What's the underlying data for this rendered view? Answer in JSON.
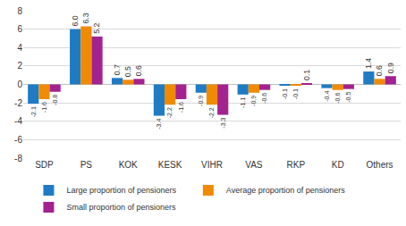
{
  "chart_data": {
    "type": "bar",
    "categories": [
      "SDP",
      "PS",
      "KOK",
      "KESK",
      "VIHR",
      "VAS",
      "RKP",
      "KD",
      "Others"
    ],
    "series": [
      {
        "name": "Large proportion of pensioners",
        "color": "#1f7bc3",
        "values": [
          -2.1,
          6.0,
          0.7,
          -3.4,
          -0.9,
          -1.1,
          -0.1,
          -0.4,
          1.4
        ],
        "value_labels": [
          "-2.1",
          "6.0",
          "0.7",
          "-3.4",
          "-0.9",
          "-1.1",
          "-0.1",
          "-0.4",
          "1.4"
        ]
      },
      {
        "name": "Average proportion of pensioners",
        "color": "#f08a00",
        "values": [
          -1.6,
          6.3,
          0.5,
          -2.2,
          -2.2,
          -0.9,
          -0.1,
          -0.6,
          0.6
        ],
        "value_labels": [
          "-1.6",
          "6.3",
          "0.5",
          "-2.2",
          "-2.2",
          "-0.9",
          "-0.1",
          "-0.6",
          "0.6"
        ]
      },
      {
        "name": "Small proportion of pensioners",
        "color": "#a3228f",
        "values": [
          -0.8,
          5.2,
          0.6,
          -1.6,
          -3.3,
          -0.6,
          0.1,
          -0.5,
          0.9
        ],
        "value_labels": [
          "-0.8",
          "5.2",
          "0.6",
          "-1.6",
          "-3.3",
          "-0.6",
          "0.1",
          "-0.5",
          "0.9"
        ]
      }
    ],
    "ylim": [
      -8,
      8
    ],
    "yticks": [
      -8,
      -6,
      -4,
      -2,
      0,
      2,
      4,
      6,
      8
    ],
    "grid": true,
    "legend": "bottom",
    "data_labels": true
  }
}
